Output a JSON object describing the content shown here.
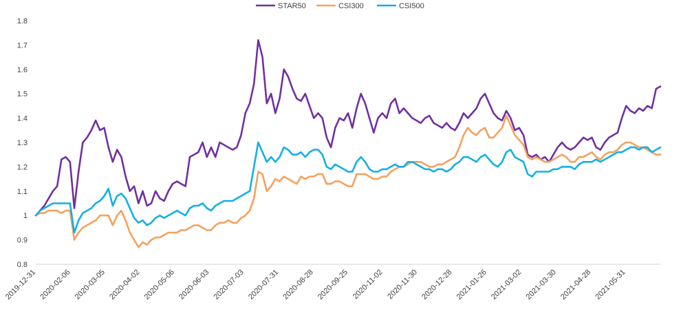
{
  "chart_data": {
    "type": "line",
    "title": "",
    "xlabel": "",
    "ylabel": "",
    "ylim": [
      0.8,
      1.8
    ],
    "yticks": [
      "0.8",
      "0.9",
      "1",
      "1.1",
      "1.2",
      "1.3",
      "1.4",
      "1.5",
      "1.6",
      "1.7",
      "1.8"
    ],
    "xticks": [
      "2019-12-31",
      "2020-02-06",
      "2020-03-05",
      "2020-04-02",
      "2020-05-06",
      "2020-06-03",
      "2020-07-03",
      "2020-07-31",
      "2020-08-28",
      "2020-09-25",
      "2020-11-02",
      "2020-11-30",
      "2020-12-28",
      "2021-01-26",
      "2021-03-02",
      "2021-03-30",
      "2021-04-28",
      "2021-05-31"
    ],
    "grid": false,
    "legend_position": "top",
    "series": [
      {
        "name": "STAR50",
        "color": "#7030a0",
        "values": [
          1.0,
          1.02,
          1.04,
          1.07,
          1.1,
          1.12,
          1.23,
          1.24,
          1.22,
          1.03,
          1.18,
          1.3,
          1.32,
          1.35,
          1.39,
          1.35,
          1.36,
          1.28,
          1.22,
          1.27,
          1.24,
          1.16,
          1.1,
          1.12,
          1.05,
          1.1,
          1.04,
          1.05,
          1.1,
          1.07,
          1.06,
          1.1,
          1.13,
          1.14,
          1.13,
          1.12,
          1.24,
          1.25,
          1.26,
          1.3,
          1.24,
          1.28,
          1.24,
          1.3,
          1.29,
          1.28,
          1.27,
          1.28,
          1.33,
          1.42,
          1.46,
          1.54,
          1.72,
          1.65,
          1.46,
          1.5,
          1.42,
          1.48,
          1.6,
          1.57,
          1.52,
          1.48,
          1.47,
          1.5,
          1.45,
          1.4,
          1.42,
          1.4,
          1.32,
          1.28,
          1.36,
          1.4,
          1.39,
          1.42,
          1.36,
          1.44,
          1.5,
          1.46,
          1.4,
          1.34,
          1.4,
          1.42,
          1.4,
          1.46,
          1.48,
          1.42,
          1.44,
          1.42,
          1.4,
          1.39,
          1.38,
          1.4,
          1.41,
          1.38,
          1.37,
          1.36,
          1.38,
          1.36,
          1.35,
          1.38,
          1.42,
          1.4,
          1.42,
          1.44,
          1.48,
          1.5,
          1.46,
          1.42,
          1.4,
          1.39,
          1.43,
          1.4,
          1.35,
          1.36,
          1.33,
          1.25,
          1.24,
          1.25,
          1.23,
          1.24,
          1.22,
          1.25,
          1.28,
          1.3,
          1.28,
          1.27,
          1.28,
          1.3,
          1.32,
          1.31,
          1.32,
          1.28,
          1.27,
          1.3,
          1.32,
          1.33,
          1.34,
          1.4,
          1.45,
          1.43,
          1.42,
          1.44,
          1.43,
          1.45,
          1.44,
          1.52,
          1.53
        ]
      },
      {
        "name": "CSI300",
        "color": "#f4a15d",
        "values": [
          1.0,
          1.01,
          1.01,
          1.02,
          1.02,
          1.02,
          1.01,
          1.02,
          1.02,
          0.9,
          0.93,
          0.95,
          0.96,
          0.97,
          0.98,
          1.0,
          1.0,
          1.0,
          0.96,
          1.0,
          1.02,
          0.98,
          0.93,
          0.9,
          0.87,
          0.89,
          0.88,
          0.9,
          0.91,
          0.91,
          0.92,
          0.93,
          0.93,
          0.93,
          0.94,
          0.94,
          0.95,
          0.96,
          0.96,
          0.95,
          0.94,
          0.94,
          0.96,
          0.97,
          0.97,
          0.98,
          0.97,
          0.97,
          0.99,
          1.0,
          1.02,
          1.07,
          1.18,
          1.17,
          1.1,
          1.12,
          1.15,
          1.14,
          1.16,
          1.15,
          1.14,
          1.13,
          1.16,
          1.15,
          1.16,
          1.16,
          1.17,
          1.17,
          1.13,
          1.13,
          1.14,
          1.14,
          1.13,
          1.12,
          1.12,
          1.17,
          1.17,
          1.17,
          1.16,
          1.15,
          1.15,
          1.16,
          1.16,
          1.18,
          1.19,
          1.2,
          1.2,
          1.21,
          1.22,
          1.22,
          1.22,
          1.21,
          1.2,
          1.2,
          1.21,
          1.21,
          1.22,
          1.23,
          1.24,
          1.28,
          1.33,
          1.36,
          1.34,
          1.33,
          1.35,
          1.36,
          1.32,
          1.32,
          1.34,
          1.36,
          1.41,
          1.37,
          1.33,
          1.31,
          1.29,
          1.24,
          1.23,
          1.24,
          1.23,
          1.22,
          1.22,
          1.23,
          1.24,
          1.25,
          1.24,
          1.22,
          1.22,
          1.24,
          1.24,
          1.25,
          1.26,
          1.24,
          1.23,
          1.25,
          1.26,
          1.26,
          1.27,
          1.29,
          1.3,
          1.3,
          1.29,
          1.28,
          1.28,
          1.27,
          1.26,
          1.25,
          1.25
        ]
      },
      {
        "name": "CSI500",
        "color": "#13afe6",
        "values": [
          1.0,
          1.02,
          1.03,
          1.04,
          1.05,
          1.05,
          1.05,
          1.05,
          1.05,
          0.93,
          0.98,
          1.01,
          1.02,
          1.03,
          1.05,
          1.06,
          1.08,
          1.11,
          1.04,
          1.08,
          1.09,
          1.07,
          1.03,
          0.99,
          0.97,
          0.98,
          0.96,
          0.97,
          0.99,
          1.0,
          0.99,
          1.0,
          1.01,
          1.02,
          1.01,
          1.0,
          1.03,
          1.04,
          1.04,
          1.05,
          1.03,
          1.02,
          1.04,
          1.05,
          1.06,
          1.06,
          1.06,
          1.07,
          1.08,
          1.09,
          1.1,
          1.2,
          1.3,
          1.26,
          1.22,
          1.24,
          1.22,
          1.24,
          1.28,
          1.27,
          1.25,
          1.25,
          1.26,
          1.24,
          1.26,
          1.27,
          1.27,
          1.25,
          1.2,
          1.19,
          1.21,
          1.2,
          1.19,
          1.18,
          1.18,
          1.22,
          1.24,
          1.22,
          1.19,
          1.18,
          1.18,
          1.19,
          1.19,
          1.2,
          1.21,
          1.2,
          1.2,
          1.22,
          1.22,
          1.21,
          1.2,
          1.19,
          1.19,
          1.18,
          1.19,
          1.19,
          1.18,
          1.19,
          1.21,
          1.22,
          1.24,
          1.24,
          1.23,
          1.22,
          1.24,
          1.25,
          1.23,
          1.21,
          1.2,
          1.22,
          1.26,
          1.27,
          1.24,
          1.23,
          1.22,
          1.17,
          1.16,
          1.18,
          1.18,
          1.18,
          1.18,
          1.19,
          1.19,
          1.2,
          1.2,
          1.2,
          1.19,
          1.21,
          1.22,
          1.22,
          1.22,
          1.23,
          1.22,
          1.23,
          1.24,
          1.25,
          1.26,
          1.26,
          1.27,
          1.28,
          1.28,
          1.27,
          1.28,
          1.28,
          1.26,
          1.27,
          1.28
        ]
      }
    ]
  }
}
